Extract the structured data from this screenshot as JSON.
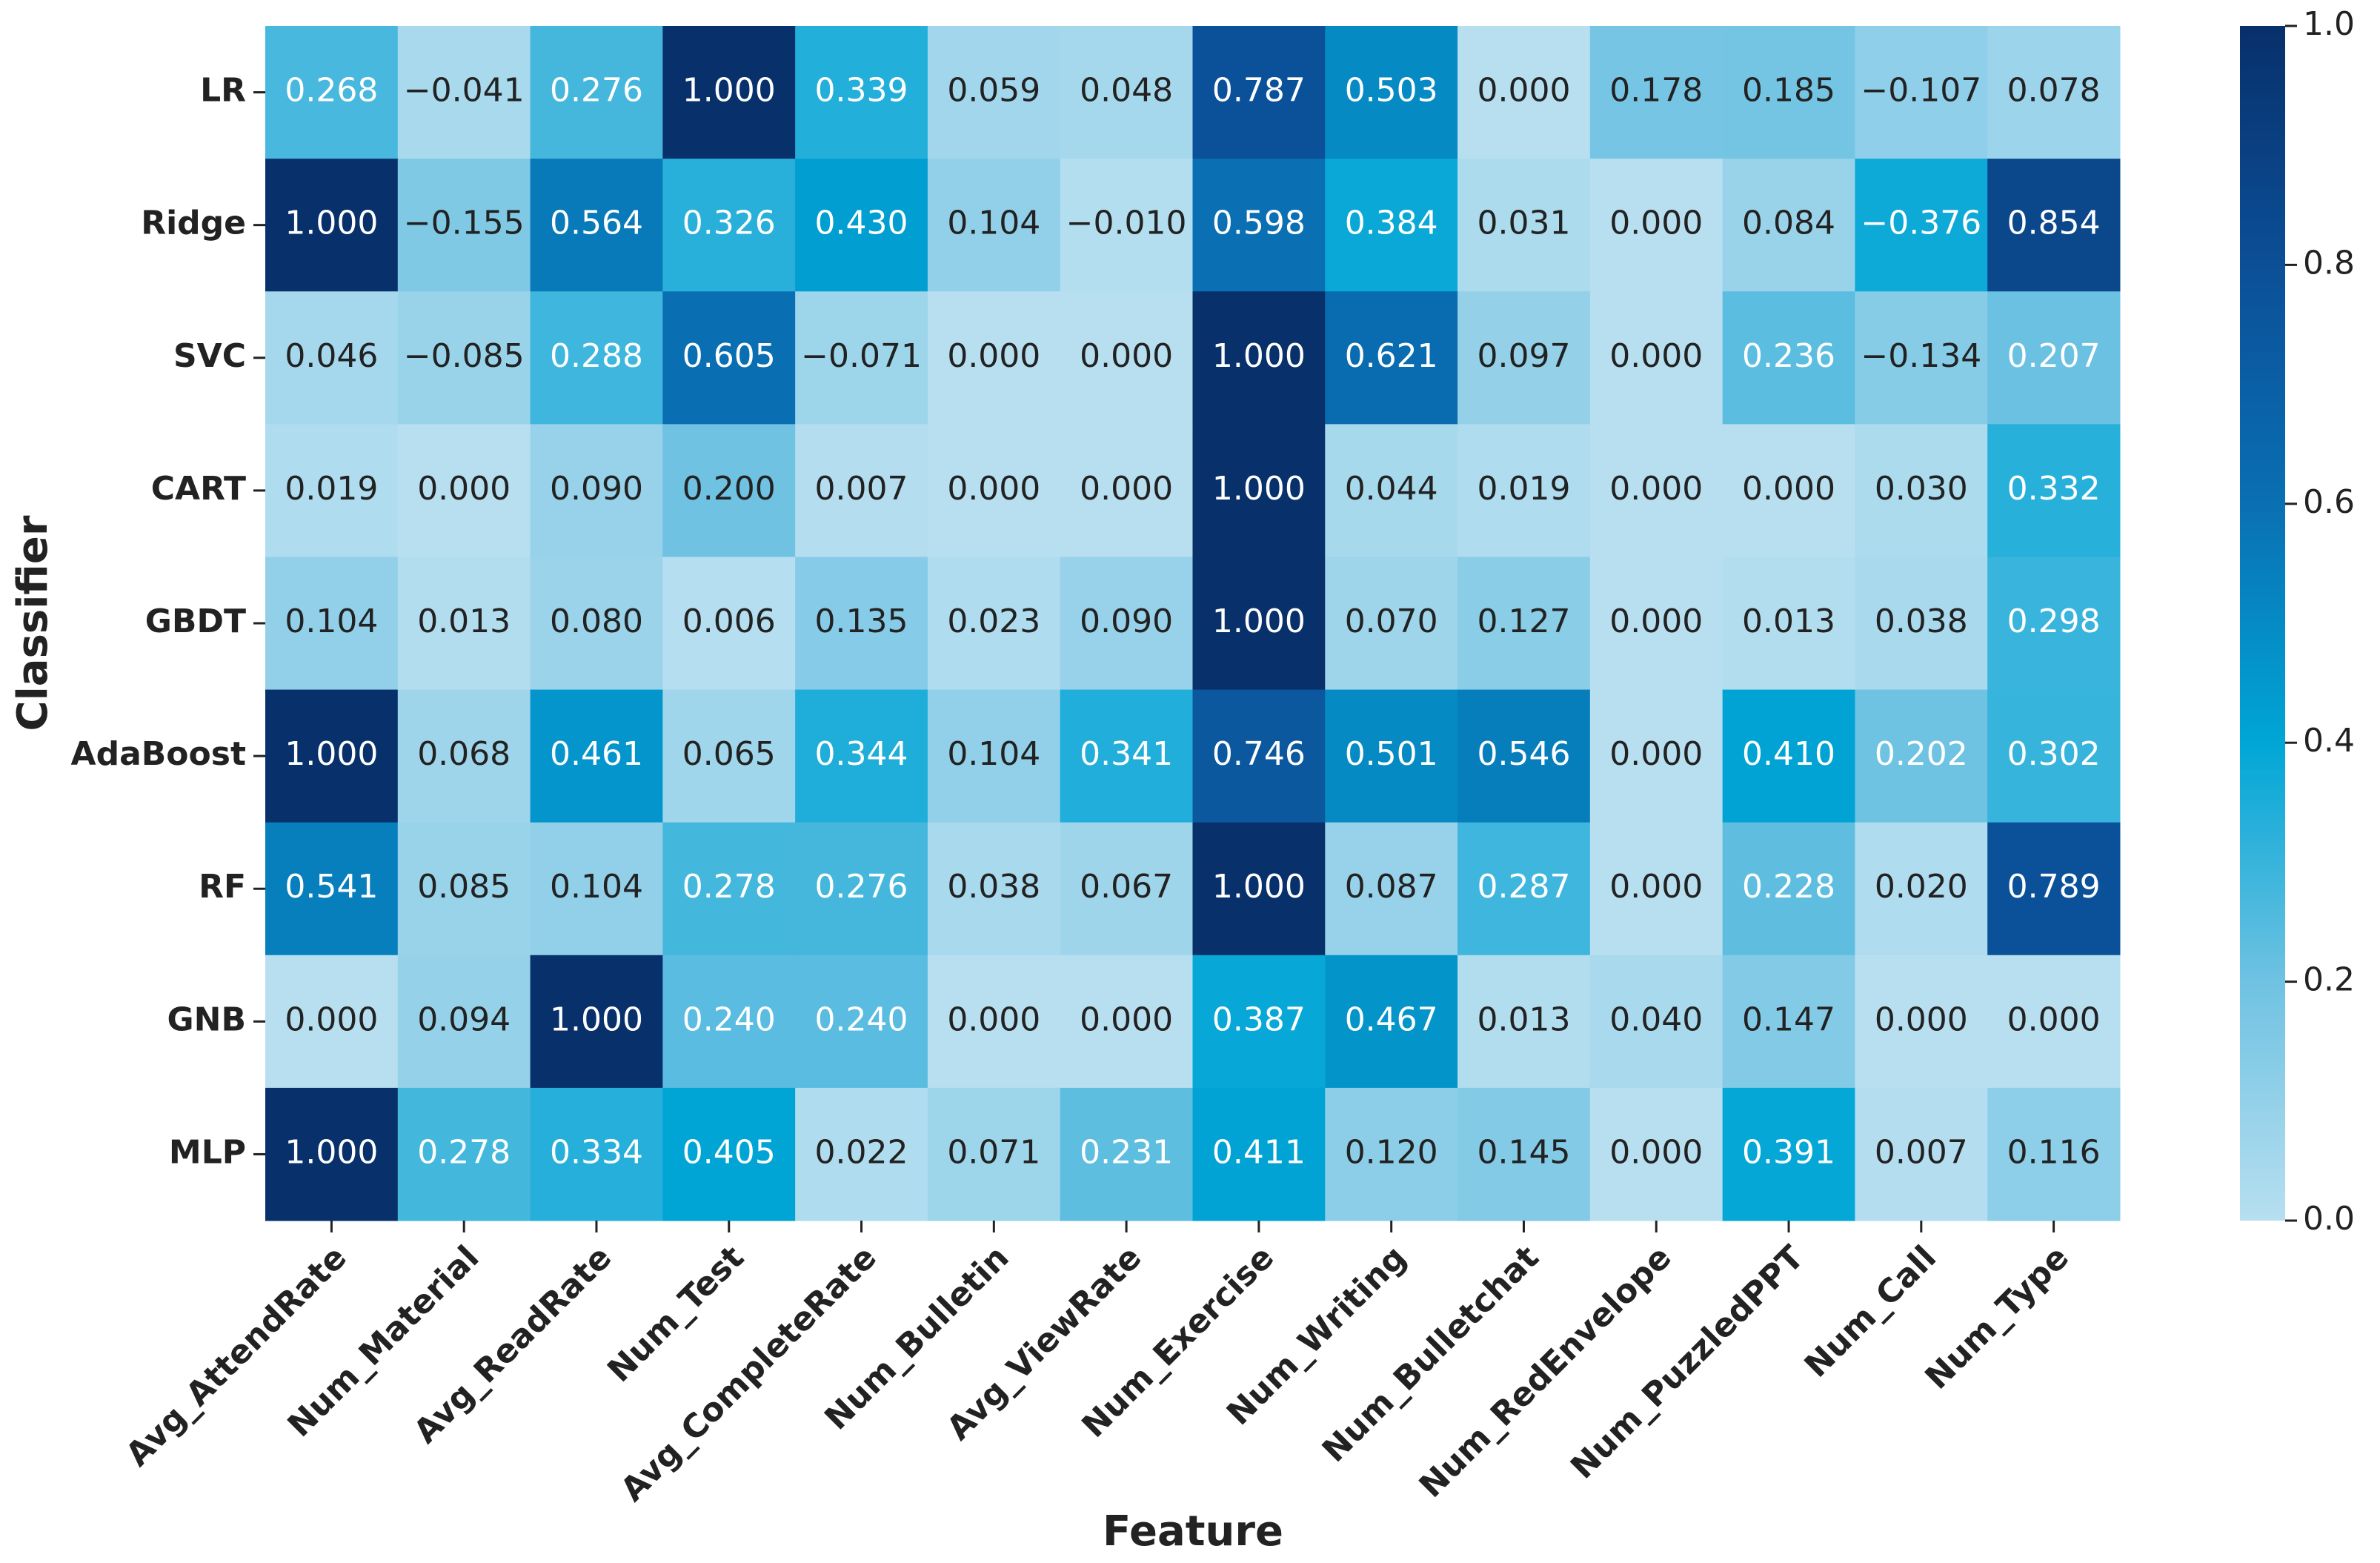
{
  "chart_data": {
    "type": "heatmap",
    "x_label": "Feature",
    "y_label": "Classifier",
    "x_categories": [
      "Avg_AttendRate",
      "Num_Material",
      "Avg_ReadRate",
      "Num_Test",
      "Avg_CompleteRate",
      "Num_Bulletin",
      "Avg_ViewRate",
      "Num_Exercise",
      "Num_Writing",
      "Num_Bulletchat",
      "Num_RedEnvelope",
      "Num_PuzzledPPT",
      "Num_Call",
      "Num_Type"
    ],
    "y_categories": [
      "LR",
      "Ridge",
      "SVC",
      "CART",
      "GBDT",
      "AdaBoost",
      "RF",
      "GNB",
      "MLP"
    ],
    "values": [
      [
        0.268,
        -0.041,
        0.276,
        1.0,
        0.339,
        0.059,
        0.048,
        0.787,
        0.503,
        0.0,
        0.178,
        0.185,
        -0.107,
        0.078
      ],
      [
        1.0,
        -0.155,
        0.564,
        0.326,
        0.43,
        0.104,
        -0.01,
        0.598,
        0.384,
        0.031,
        0.0,
        0.084,
        -0.376,
        0.854
      ],
      [
        0.046,
        -0.085,
        0.288,
        0.605,
        -0.071,
        0.0,
        0.0,
        1.0,
        0.621,
        0.097,
        0.0,
        0.236,
        -0.134,
        0.207
      ],
      [
        0.019,
        0.0,
        0.09,
        0.2,
        0.007,
        0.0,
        0.0,
        1.0,
        0.044,
        0.019,
        0.0,
        0.0,
        0.03,
        0.332
      ],
      [
        0.104,
        0.013,
        0.08,
        0.006,
        0.135,
        0.023,
        0.09,
        1.0,
        0.07,
        0.127,
        0.0,
        0.013,
        0.038,
        0.298
      ],
      [
        1.0,
        0.068,
        0.461,
        0.065,
        0.344,
        0.104,
        0.341,
        0.746,
        0.501,
        0.546,
        0.0,
        0.41,
        0.202,
        0.302
      ],
      [
        0.541,
        0.085,
        0.104,
        0.278,
        0.276,
        0.038,
        0.067,
        1.0,
        0.087,
        0.287,
        0.0,
        0.228,
        0.02,
        0.789
      ],
      [
        0.0,
        0.094,
        1.0,
        0.24,
        0.24,
        0.0,
        0.0,
        0.387,
        0.467,
        0.013,
        0.04,
        0.147,
        0.0,
        0.0
      ],
      [
        1.0,
        0.278,
        0.334,
        0.405,
        0.022,
        0.071,
        0.231,
        0.411,
        0.12,
        0.145,
        0.0,
        0.391,
        0.007,
        0.116
      ]
    ],
    "value_labels": [
      [
        "0.268",
        "−0.041",
        "0.276",
        "1.000",
        "0.339",
        "0.059",
        "0.048",
        "0.787",
        "0.503",
        "0.000",
        "0.178",
        "0.185",
        "−0.107",
        "0.078"
      ],
      [
        "1.000",
        "−0.155",
        "0.564",
        "0.326",
        "0.430",
        "0.104",
        "−0.010",
        "0.598",
        "0.384",
        "0.031",
        "0.000",
        "0.084",
        "−0.376",
        "0.854"
      ],
      [
        "0.046",
        "−0.085",
        "0.288",
        "0.605",
        "−0.071",
        "0.000",
        "0.000",
        "1.000",
        "0.621",
        "0.097",
        "0.000",
        "0.236",
        "−0.134",
        "0.207"
      ],
      [
        "0.019",
        "0.000",
        "0.090",
        "0.200",
        "0.007",
        "0.000",
        "0.000",
        "1.000",
        "0.044",
        "0.019",
        "0.000",
        "0.000",
        "0.030",
        "0.332"
      ],
      [
        "0.104",
        "0.013",
        "0.080",
        "0.006",
        "0.135",
        "0.023",
        "0.090",
        "1.000",
        "0.070",
        "0.127",
        "0.000",
        "0.013",
        "0.038",
        "0.298"
      ],
      [
        "1.000",
        "0.068",
        "0.461",
        "0.065",
        "0.344",
        "0.104",
        "0.341",
        "0.746",
        "0.501",
        "0.546",
        "0.000",
        "0.410",
        "0.202",
        "0.302"
      ],
      [
        "0.541",
        "0.085",
        "0.104",
        "0.278",
        "0.276",
        "0.038",
        "0.067",
        "1.000",
        "0.087",
        "0.287",
        "0.000",
        "0.228",
        "0.020",
        "0.789"
      ],
      [
        "0.000",
        "0.094",
        "1.000",
        "0.240",
        "0.240",
        "0.000",
        "0.000",
        "0.387",
        "0.467",
        "0.013",
        "0.040",
        "0.147",
        "0.000",
        "0.000"
      ],
      [
        "1.000",
        "0.278",
        "0.334",
        "0.405",
        "0.022",
        "0.071",
        "0.231",
        "0.411",
        "0.120",
        "0.145",
        "0.000",
        "0.391",
        "0.007",
        "0.116"
      ]
    ],
    "clim": [
      0,
      1
    ],
    "cticks": [
      {
        "value": 0,
        "label": "0.0"
      },
      {
        "value": 0.2,
        "label": "0.2"
      },
      {
        "value": 0.4,
        "label": "0.4"
      },
      {
        "value": 0.6,
        "label": "0.6"
      },
      {
        "value": 0.8,
        "label": "0.8"
      },
      {
        "value": 1,
        "label": "1.0"
      }
    ],
    "colormap": [
      "#b7dff0",
      "#6fc2e2",
      "#00a6d6",
      "#0a6fb3",
      "#0b4f97",
      "#08306b"
    ]
  }
}
